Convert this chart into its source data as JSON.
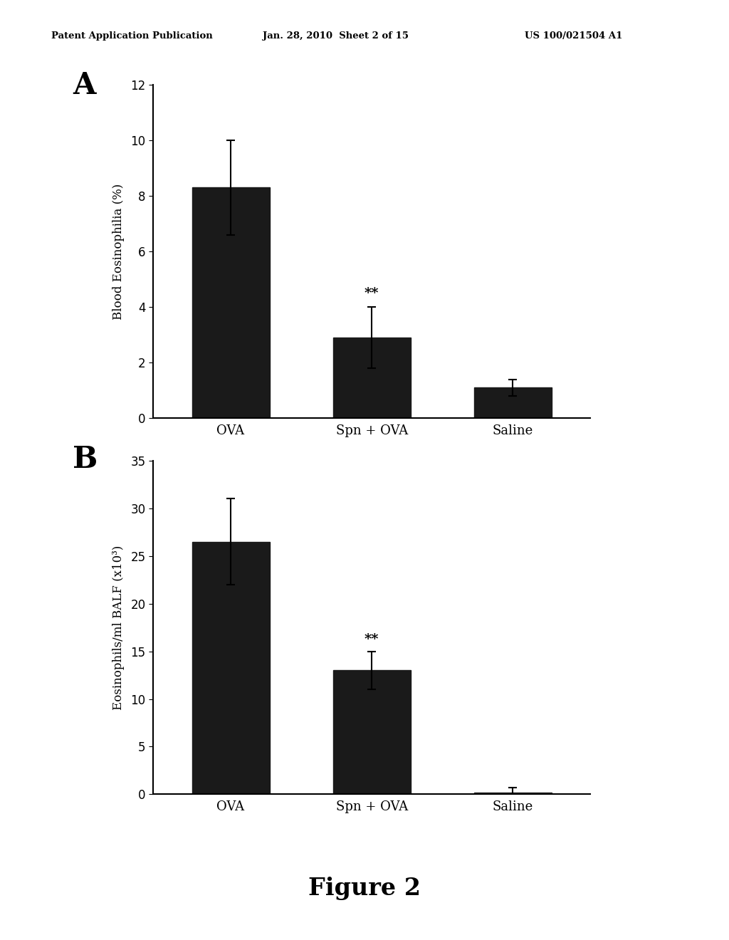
{
  "panel_A": {
    "categories": [
      "OVA",
      "Spn + OVA",
      "Saline"
    ],
    "values": [
      8.3,
      2.9,
      1.1
    ],
    "errors": [
      1.7,
      1.1,
      0.3
    ],
    "ylabel": "Blood Eosinophilia (%)",
    "ylim": [
      0,
      12
    ],
    "yticks": [
      0,
      2,
      4,
      6,
      8,
      10,
      12
    ],
    "label": "A",
    "sig_labels": [
      "",
      "**",
      ""
    ],
    "bar_color": "#1a1a1a",
    "bar_width": 0.55
  },
  "panel_B": {
    "categories": [
      "OVA",
      "Spn + OVA",
      "Saline"
    ],
    "values": [
      26.5,
      13.0,
      0.2
    ],
    "errors": [
      4.5,
      2.0,
      0.5
    ],
    "ylabel": "Eosinophils/ml BALF (x10³)",
    "ylim": [
      0,
      35
    ],
    "yticks": [
      0,
      5,
      10,
      15,
      20,
      25,
      30,
      35
    ],
    "label": "B",
    "sig_labels": [
      "",
      "**",
      ""
    ],
    "bar_color": "#1a1a1a",
    "bar_width": 0.55
  },
  "header_left": "Patent Application Publication",
  "header_mid": "Jan. 28, 2010  Sheet 2 of 15",
  "header_right": "US 100/021504 A1",
  "figure_label": "Figure 2",
  "bg_color": "#ffffff",
  "text_color": "#000000"
}
